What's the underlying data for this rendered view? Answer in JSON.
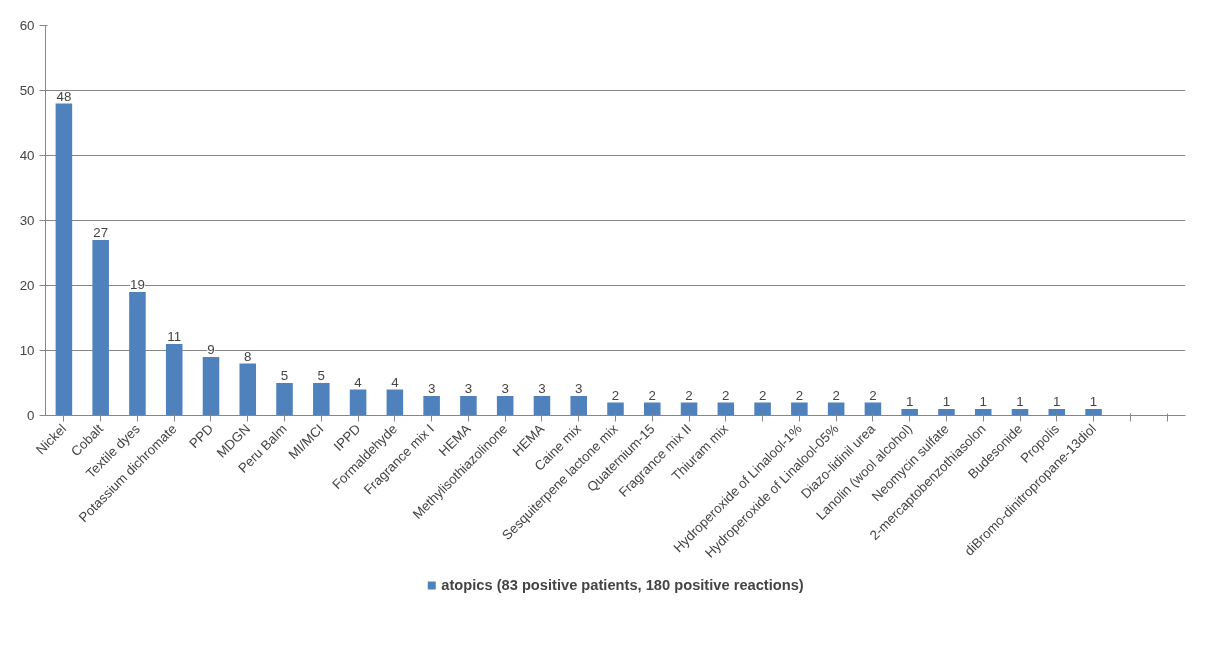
{
  "chart_data": {
    "type": "bar",
    "categories": [
      "Nickel",
      "Cobalt",
      "Textile dyes",
      "Potassium dichromate",
      "PPD",
      "MDGN",
      "Peru Balm",
      "MI/MCI",
      "IPPD",
      "Formaldehyde",
      "Fragrance mix I",
      "HEMA",
      "Methylisothiazolinone",
      "HEMA",
      "Caine mix",
      "Sesquiterpene lactone mix",
      "Quaternium-15",
      "Fragrance mix II",
      "Thiuram mix",
      null,
      "Hydroperoxide of Linalool-1%",
      "Hydroperoxide of Linalool-05%",
      "Diazo-lidinil urea",
      "Lanolin (wool alcohol)",
      "Neomycin sulfate",
      "2-mercaptobenzothiasolon",
      "Budesonide",
      "Propolis",
      "diBromo-dinitropropane-13diol",
      null,
      null
    ],
    "series": [
      {
        "name": "atopics (83 positive patients, 180 positive reactions)",
        "color": "#4f81bd",
        "values": [
          48,
          27,
          19,
          11,
          9,
          8,
          5,
          5,
          4,
          4,
          3,
          3,
          3,
          3,
          3,
          2,
          2,
          2,
          2,
          2,
          2,
          2,
          2,
          1,
          1,
          1,
          1,
          1,
          1,
          null,
          null
        ]
      }
    ],
    "ylim": [
      0,
      60
    ],
    "yticks": [
      0,
      10,
      20,
      30,
      40,
      50,
      60
    ],
    "grid": "y",
    "legend": "bottom",
    "data_labels": true
  }
}
